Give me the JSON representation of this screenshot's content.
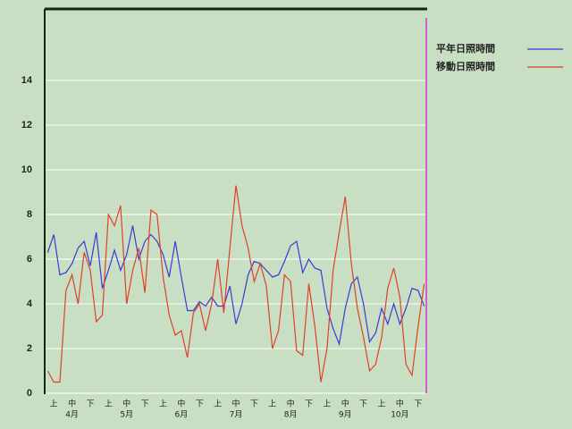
{
  "chart_data": {
    "type": "line",
    "categories": [
      null,
      "上",
      null,
      null,
      "中",
      null,
      null,
      "下",
      null,
      null,
      "上",
      null,
      null,
      "中",
      null,
      null,
      "下",
      null,
      null,
      "上",
      null,
      null,
      "中",
      null,
      null,
      "下",
      null,
      null,
      "上",
      null,
      null,
      "中",
      null,
      null,
      "下",
      null,
      null,
      "上",
      null,
      null,
      "中",
      null,
      null,
      "下",
      null,
      null,
      "上",
      null,
      null,
      "中",
      null,
      null,
      "下",
      null,
      null,
      "上",
      null,
      null,
      "中",
      null,
      null,
      "下",
      null
    ],
    "months": [
      "4月",
      "5月",
      "6月",
      "7月",
      "8月",
      "9月",
      "10月"
    ],
    "series": [
      {
        "name": "平年日照時間",
        "color": "#3b3bd6",
        "values": [
          6.3,
          7.1,
          5.3,
          5.4,
          5.8,
          6.5,
          6.8,
          5.7,
          7.2,
          4.7,
          5.5,
          6.4,
          5.5,
          6.2,
          7.5,
          6.0,
          6.8,
          7.1,
          6.8,
          6.2,
          5.2,
          6.8,
          5.2,
          3.7,
          3.7,
          4.1,
          3.9,
          4.3,
          3.9,
          3.9,
          4.8,
          3.1,
          4.0,
          5.3,
          5.9,
          5.8,
          5.5,
          5.2,
          5.3,
          5.9,
          6.6,
          6.8,
          5.4,
          6.0,
          5.6,
          5.5,
          3.8,
          2.9,
          2.2,
          3.8,
          4.9,
          5.2,
          4.0,
          2.3,
          2.7,
          3.8,
          3.1,
          4.0,
          3.1,
          3.8,
          4.7,
          4.6,
          3.9
        ]
      },
      {
        "name": "移動日照時間",
        "color": "#e0402a",
        "values": [
          1.0,
          0.5,
          0.5,
          4.6,
          5.3,
          4.0,
          6.3,
          5.5,
          3.2,
          3.5,
          8.0,
          7.5,
          8.4,
          4.0,
          5.5,
          6.5,
          4.5,
          8.2,
          8.0,
          5.2,
          3.5,
          2.6,
          2.8,
          1.6,
          3.6,
          4.0,
          2.8,
          4.0,
          6.0,
          3.6,
          6.5,
          9.3,
          7.5,
          6.5,
          5.0,
          5.8,
          4.8,
          2.0,
          2.8,
          5.3,
          5.0,
          1.9,
          1.7,
          4.9,
          3.0,
          0.5,
          2.0,
          5.5,
          7.2,
          8.8,
          5.8,
          3.8,
          2.5,
          1.0,
          1.3,
          2.5,
          4.7,
          5.6,
          4.3,
          1.3,
          0.8,
          3.0,
          4.9
        ]
      }
    ],
    "ylim": [
      0,
      17.2
    ],
    "yticks": [
      0,
      2,
      4,
      6,
      8,
      10,
      12,
      14
    ],
    "grid": true
  }
}
